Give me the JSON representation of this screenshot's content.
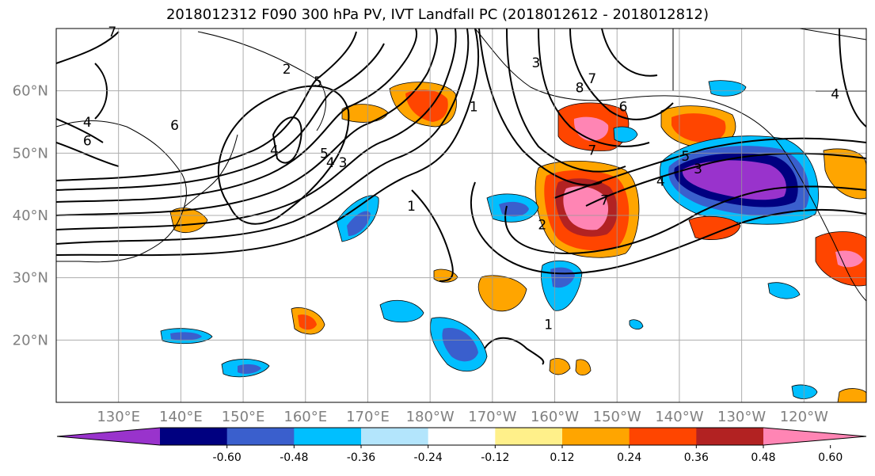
{
  "title": "2018012312 F090 300 hPa PV, IVT Landfall PC (2018012612 - 2018012812)",
  "map": {
    "lon_range": [
      120,
      250
    ],
    "lat_range": [
      10,
      70
    ],
    "lat_ticks": [
      {
        "value": 60,
        "label": "60°N"
      },
      {
        "value": 50,
        "label": "50°N"
      },
      {
        "value": 40,
        "label": "40°N"
      },
      {
        "value": 30,
        "label": "30°N"
      },
      {
        "value": 20,
        "label": "20°N"
      }
    ],
    "lon_ticks": [
      {
        "value": 130,
        "label": "130°E"
      },
      {
        "value": 140,
        "label": "140°E"
      },
      {
        "value": 150,
        "label": "150°E"
      },
      {
        "value": 160,
        "label": "160°E"
      },
      {
        "value": 170,
        "label": "170°E"
      },
      {
        "value": 180,
        "label": "180°W"
      },
      {
        "value": 190,
        "label": "170°W"
      },
      {
        "value": 200,
        "label": "160°W"
      },
      {
        "value": 210,
        "label": "150°W"
      },
      {
        "value": 220,
        "label": "140°W"
      },
      {
        "value": 230,
        "label": "130°W"
      },
      {
        "value": 240,
        "label": "120°W"
      }
    ],
    "gridlines": true,
    "contour_labels": [
      {
        "text": "7",
        "lon": 129,
        "lat": 69
      },
      {
        "text": "2",
        "lon": 157,
        "lat": 63
      },
      {
        "text": "5",
        "lon": 162,
        "lat": 61
      },
      {
        "text": "4",
        "lon": 125,
        "lat": 54.5
      },
      {
        "text": "6",
        "lon": 125,
        "lat": 51.5
      },
      {
        "text": "6",
        "lon": 139,
        "lat": 54
      },
      {
        "text": "4",
        "lon": 155,
        "lat": 50
      },
      {
        "text": "5",
        "lon": 163,
        "lat": 49.5
      },
      {
        "text": "4",
        "lon": 164,
        "lat": 48
      },
      {
        "text": "3",
        "lon": 166,
        "lat": 48
      },
      {
        "text": "1",
        "lon": 177,
        "lat": 41
      },
      {
        "text": "1",
        "lon": 187,
        "lat": 57
      },
      {
        "text": "3",
        "lon": 197,
        "lat": 64
      },
      {
        "text": "8",
        "lon": 204,
        "lat": 60
      },
      {
        "text": "7",
        "lon": 206,
        "lat": 61.5
      },
      {
        "text": "6",
        "lon": 211,
        "lat": 57
      },
      {
        "text": "7",
        "lon": 206,
        "lat": 50
      },
      {
        "text": "7",
        "lon": 208,
        "lat": 42
      },
      {
        "text": "2",
        "lon": 198,
        "lat": 38
      },
      {
        "text": "4",
        "lon": 217,
        "lat": 45
      },
      {
        "text": "5",
        "lon": 221,
        "lat": 49
      },
      {
        "text": "3",
        "lon": 223,
        "lat": 47
      },
      {
        "text": "1",
        "lon": 199,
        "lat": 22
      },
      {
        "text": "4",
        "lon": 245,
        "lat": 59
      }
    ]
  },
  "colorbar": {
    "colors": [
      "#9933cc",
      "#000080",
      "#3a5fcd",
      "#00bfff",
      "#b3e5fc",
      "#ffffff",
      "#fff08a",
      "#ffa500",
      "#ff4500",
      "#b22222",
      "#ff85b4"
    ],
    "tick_labels": [
      "-0.60",
      "-0.48",
      "-0.36",
      "-0.24",
      "-0.12",
      "0.12",
      "0.24",
      "0.36",
      "0.48",
      "0.60"
    ]
  }
}
